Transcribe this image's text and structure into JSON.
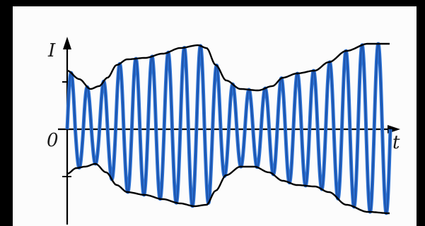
{
  "diagram": {
    "y_axis_label": "I",
    "x_axis_label": "t",
    "origin_label": "0",
    "colors": {
      "wave": "#2a6fd0",
      "wave_core": "#123a8a",
      "envelope": "#000000",
      "axes": "#000000",
      "background": "#fcfcfc",
      "frame": "#000000"
    },
    "signal": {
      "description_type": "amplitude-modulated sinusoid",
      "cycles": 20,
      "envelope_shape": "varying upper and lower envelope, mirrored about the t-axis"
    }
  }
}
